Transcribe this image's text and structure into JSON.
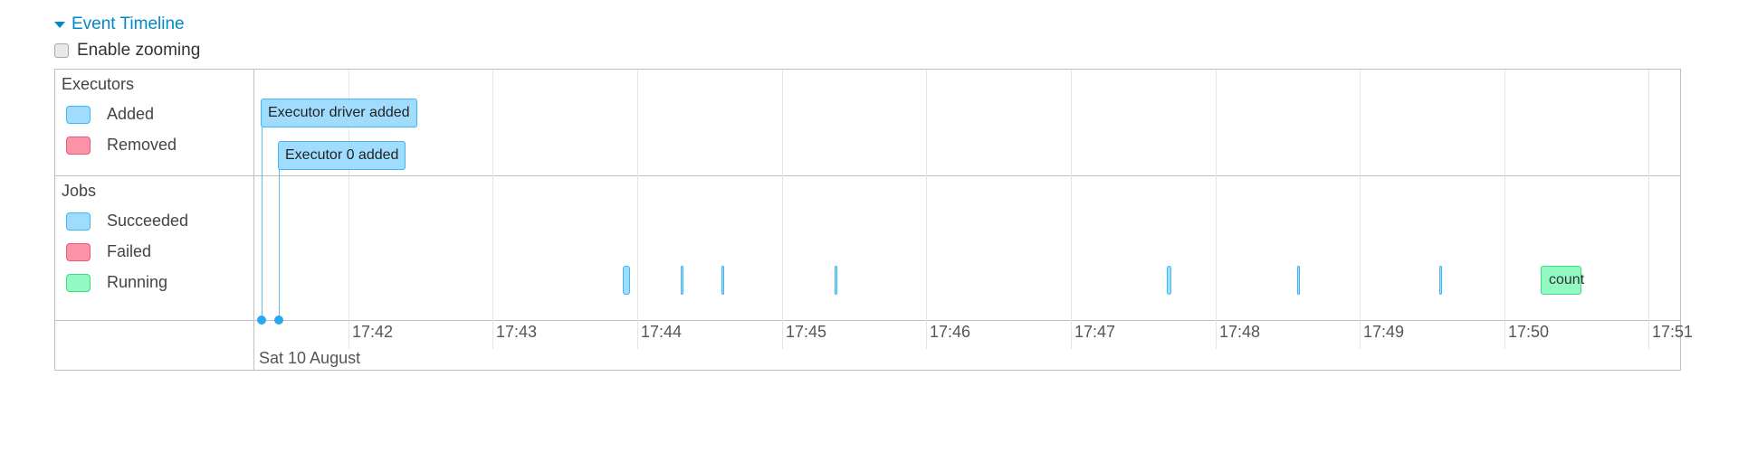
{
  "header": {
    "title": "Event Timeline",
    "enable_zooming_label": "Enable zooming",
    "enable_zooming_checked": false
  },
  "axis": {
    "range": [
      "17:41:21",
      "17:51:13"
    ],
    "date_label": "Sat 10 August",
    "ticks": [
      "17:42",
      "17:43",
      "17:44",
      "17:45",
      "17:46",
      "17:47",
      "17:48",
      "17:49",
      "17:50",
      "17:51"
    ]
  },
  "groups": {
    "executors": {
      "label": "Executors",
      "legend": [
        {
          "label": "Added",
          "color": "#9fdcfd",
          "border": "#3fb7f5"
        },
        {
          "label": "Removed",
          "color": "#fb93a8",
          "border": "#f0577a"
        }
      ],
      "events": [
        {
          "label": "Executor driver added",
          "time": "17:41:24",
          "status": "added"
        },
        {
          "label": "Executor 0 added",
          "time": "17:41:31",
          "status": "added"
        }
      ]
    },
    "jobs": {
      "label": "Jobs",
      "legend": [
        {
          "label": "Succeeded",
          "color": "#9fdcfd",
          "border": "#3fb7f5"
        },
        {
          "label": "Failed",
          "color": "#fb93a8",
          "border": "#f0577a"
        },
        {
          "label": "Running",
          "color": "#93f9c3",
          "border": "#3cdc80"
        }
      ],
      "events": [
        {
          "start": "17:43:54",
          "end": "17:43:57",
          "status": "succeeded"
        },
        {
          "start": "17:44:18",
          "end": "17:44:18",
          "status": "succeeded"
        },
        {
          "start": "17:44:35",
          "end": "17:44:35",
          "status": "succeeded"
        },
        {
          "start": "17:45:22",
          "end": "17:45:22",
          "status": "succeeded"
        },
        {
          "start": "17:47:40",
          "end": "17:47:42",
          "status": "succeeded"
        },
        {
          "start": "17:48:34",
          "end": "17:48:34",
          "status": "succeeded"
        },
        {
          "start": "17:49:33",
          "end": "17:49:33",
          "status": "succeeded"
        },
        {
          "start": "17:50:15",
          "end": "17:50:32",
          "status": "running",
          "label": "count"
        }
      ]
    }
  }
}
